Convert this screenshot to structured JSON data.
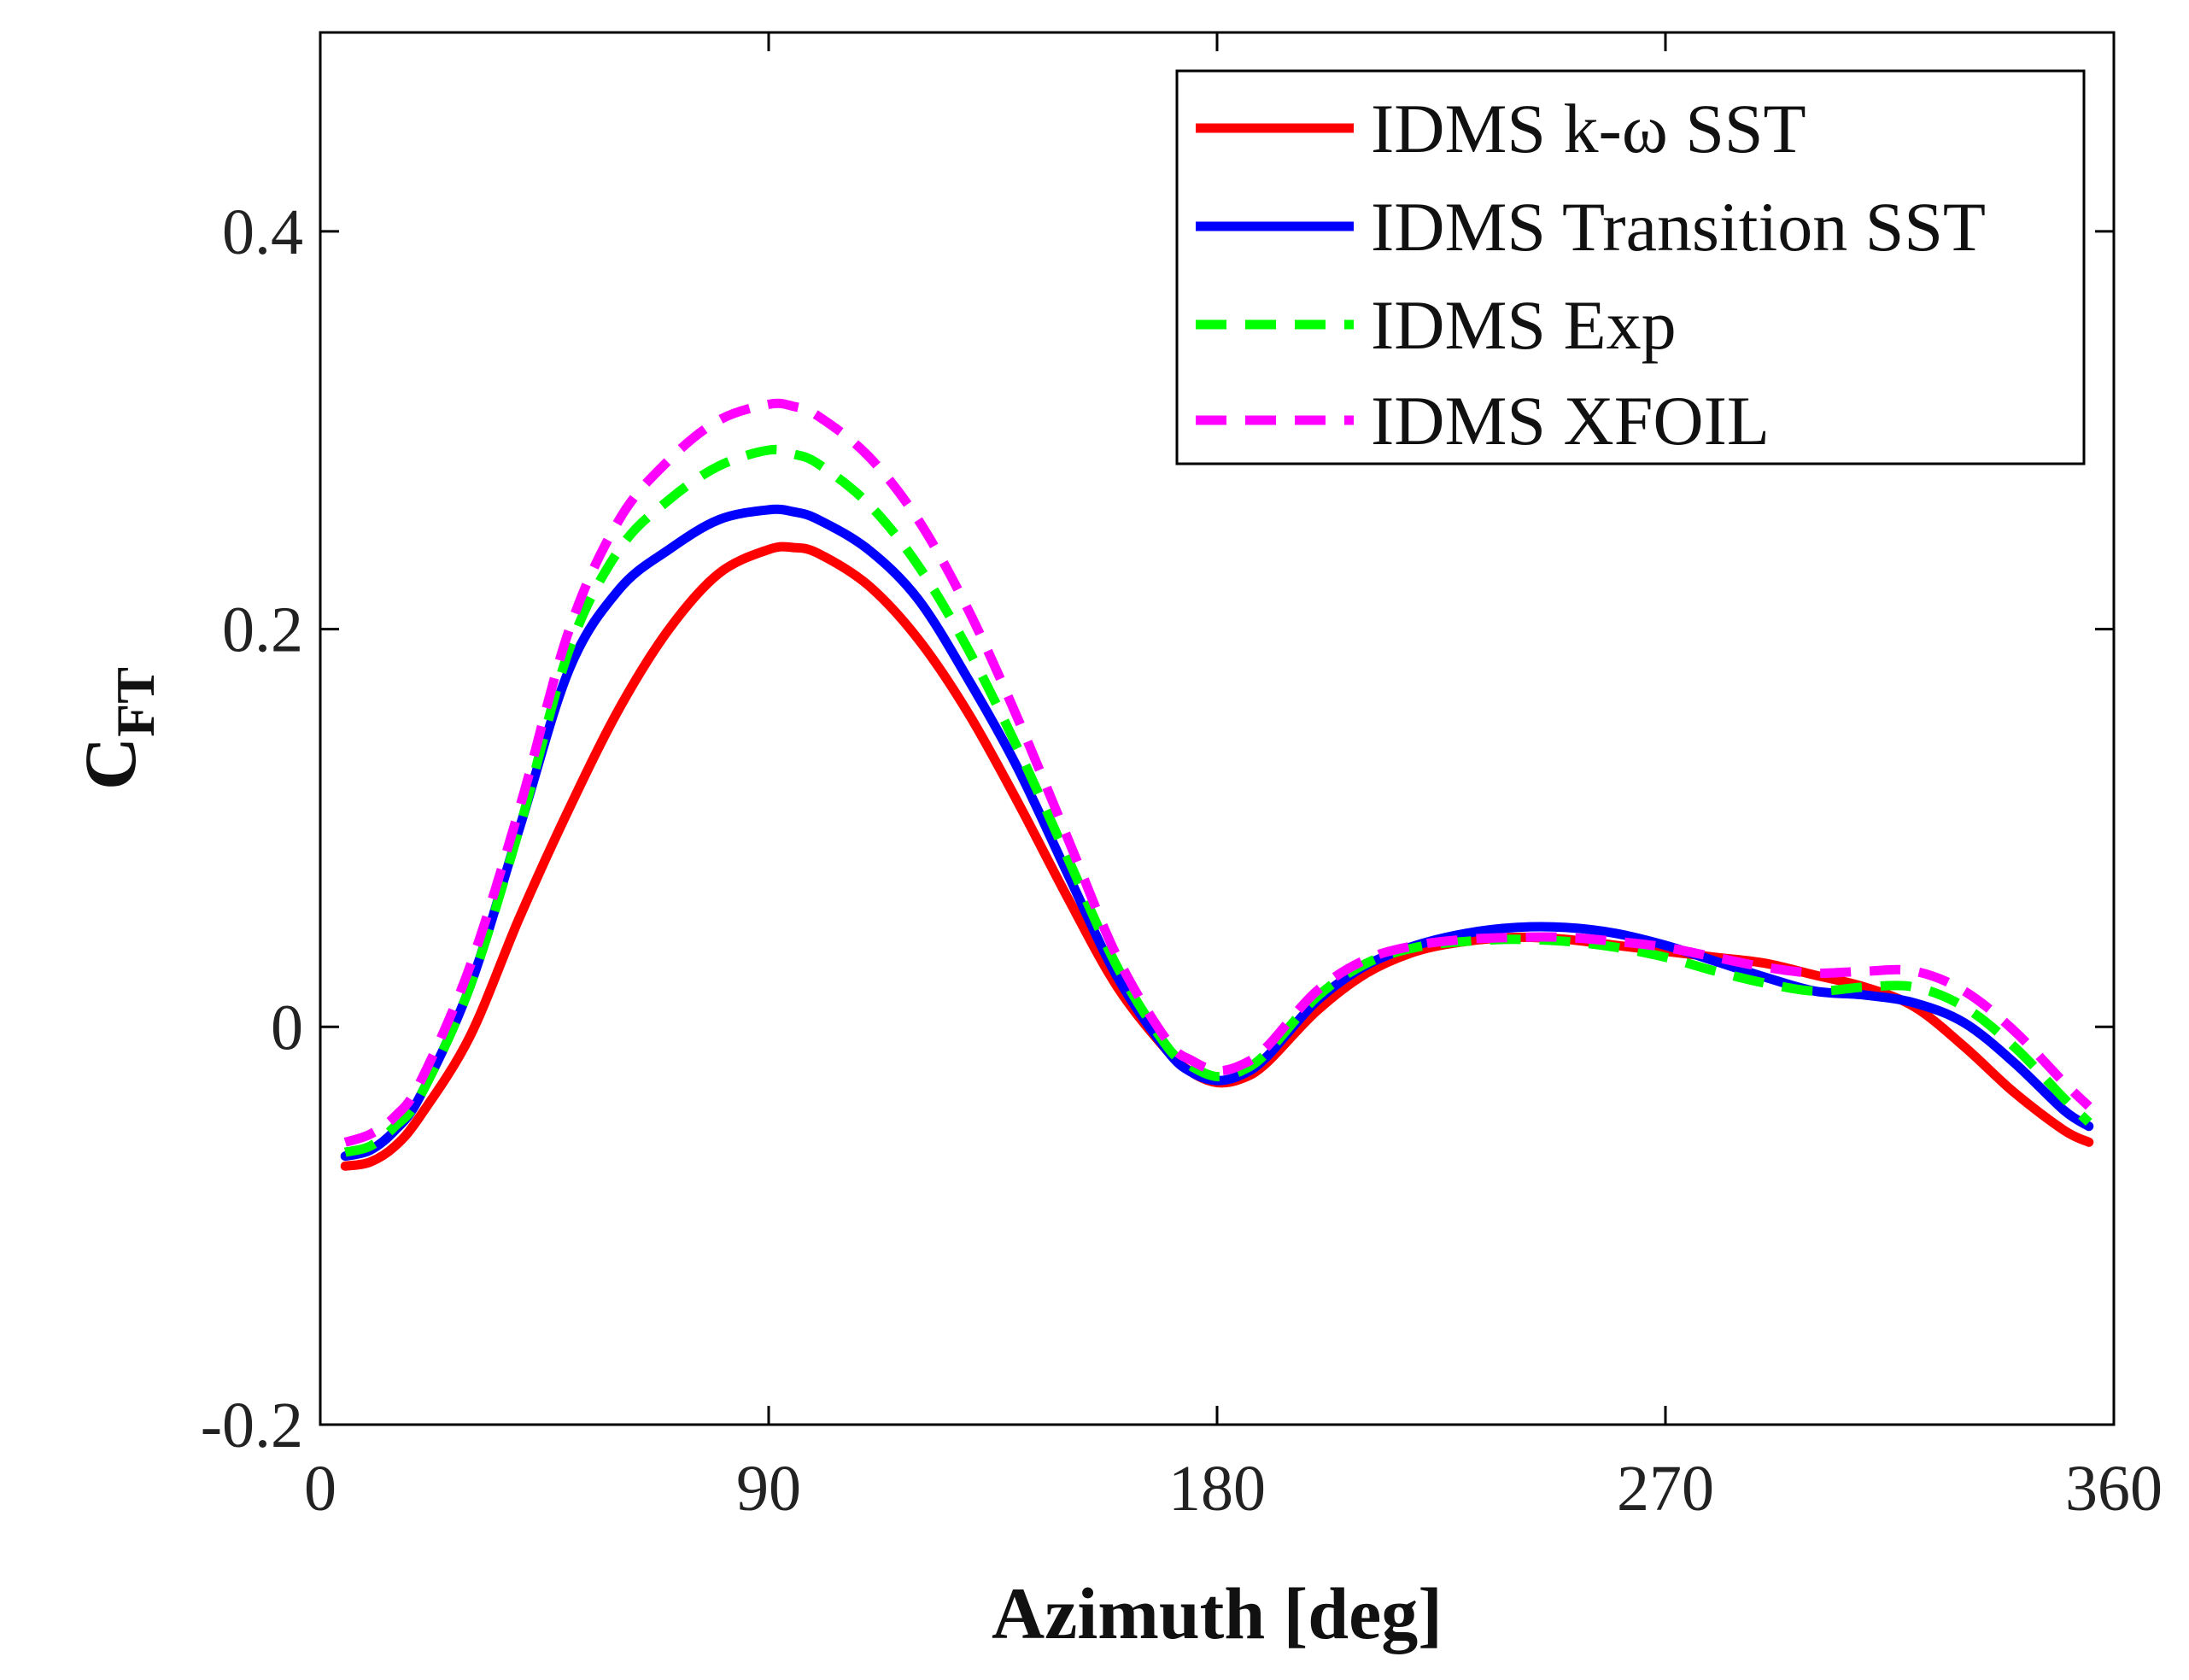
{
  "chart_data": {
    "type": "line",
    "xlabel": "Azimuth [deg]",
    "ylabel": {
      "main": "C",
      "sub": "FT"
    },
    "xlim": [
      0,
      360
    ],
    "ylim": [
      -0.2,
      0.5
    ],
    "xticks": [
      0,
      90,
      180,
      270,
      360
    ],
    "xtick_labels": [
      "0",
      "90",
      "180",
      "270",
      "360"
    ],
    "yticks": [
      -0.2,
      0,
      0.2,
      0.4
    ],
    "ytick_labels": [
      "-0.2",
      "0",
      "0.2",
      "0.4"
    ],
    "grid": false,
    "legend_position": "top-right",
    "series": [
      {
        "name": "IDMS k-ω SST",
        "color": "#ff0000",
        "dash": "solid",
        "x": [
          5,
          10,
          15,
          20,
          30,
          40,
          50,
          60,
          70,
          80,
          90,
          95,
          100,
          110,
          120,
          130,
          140,
          150,
          160,
          170,
          175,
          180,
          185,
          190,
          200,
          210,
          220,
          230,
          240,
          250,
          260,
          270,
          280,
          290,
          300,
          310,
          320,
          330,
          340,
          350,
          355
        ],
        "y": [
          -0.07,
          -0.068,
          -0.06,
          -0.045,
          -0.005,
          0.055,
          0.11,
          0.16,
          0.2,
          0.228,
          0.24,
          0.241,
          0.238,
          0.222,
          0.195,
          0.158,
          0.113,
          0.065,
          0.02,
          -0.012,
          -0.023,
          -0.028,
          -0.026,
          -0.018,
          0.008,
          0.027,
          0.038,
          0.043,
          0.045,
          0.044,
          0.041,
          0.038,
          0.035,
          0.032,
          0.026,
          0.02,
          0.01,
          -0.01,
          -0.033,
          -0.052,
          -0.058
        ]
      },
      {
        "name": "IDMS Transition SST",
        "color": "#0000ff",
        "dash": "solid",
        "x": [
          5,
          10,
          15,
          20,
          30,
          40,
          50,
          60,
          70,
          80,
          90,
          95,
          100,
          110,
          120,
          130,
          140,
          150,
          160,
          170,
          175,
          180,
          185,
          190,
          200,
          210,
          220,
          230,
          240,
          250,
          260,
          270,
          280,
          290,
          300,
          310,
          320,
          330,
          340,
          350,
          355
        ],
        "y": [
          -0.065,
          -0.062,
          -0.052,
          -0.035,
          0.02,
          0.1,
          0.18,
          0.22,
          0.24,
          0.255,
          0.26,
          0.259,
          0.255,
          0.24,
          0.215,
          0.175,
          0.13,
          0.077,
          0.025,
          -0.012,
          -0.023,
          -0.027,
          -0.024,
          -0.015,
          0.013,
          0.031,
          0.041,
          0.047,
          0.05,
          0.05,
          0.047,
          0.041,
          0.033,
          0.025,
          0.018,
          0.016,
          0.012,
          0.002,
          -0.018,
          -0.042,
          -0.05
        ]
      },
      {
        "name": "IDMS Exp",
        "color": "#00ff00",
        "dash": "dashed",
        "x": [
          5,
          10,
          15,
          20,
          30,
          40,
          50,
          60,
          70,
          80,
          90,
          95,
          100,
          110,
          120,
          130,
          140,
          150,
          160,
          170,
          175,
          180,
          185,
          190,
          200,
          210,
          220,
          230,
          240,
          250,
          260,
          270,
          280,
          290,
          300,
          310,
          320,
          330,
          340,
          350,
          355
        ],
        "y": [
          -0.063,
          -0.06,
          -0.05,
          -0.035,
          0.02,
          0.1,
          0.19,
          0.24,
          0.265,
          0.282,
          0.29,
          0.288,
          0.283,
          0.263,
          0.232,
          0.19,
          0.14,
          0.085,
          0.03,
          -0.01,
          -0.02,
          -0.025,
          -0.022,
          -0.013,
          0.015,
          0.032,
          0.04,
          0.043,
          0.044,
          0.043,
          0.04,
          0.035,
          0.028,
          0.022,
          0.018,
          0.02,
          0.02,
          0.01,
          -0.01,
          -0.036,
          -0.048
        ]
      },
      {
        "name": "IDMS XFOIL",
        "color": "#ff00ff",
        "dash": "dashed",
        "x": [
          5,
          10,
          15,
          20,
          30,
          40,
          50,
          60,
          70,
          80,
          90,
          95,
          100,
          110,
          120,
          130,
          140,
          150,
          160,
          170,
          175,
          180,
          185,
          190,
          200,
          210,
          220,
          230,
          240,
          250,
          260,
          270,
          280,
          290,
          300,
          310,
          320,
          330,
          340,
          350,
          355
        ],
        "y": [
          -0.058,
          -0.054,
          -0.045,
          -0.028,
          0.03,
          0.11,
          0.2,
          0.255,
          0.285,
          0.305,
          0.313,
          0.312,
          0.307,
          0.287,
          0.255,
          0.21,
          0.155,
          0.095,
          0.035,
          -0.007,
          -0.017,
          -0.022,
          -0.019,
          -0.01,
          0.018,
          0.034,
          0.041,
          0.044,
          0.045,
          0.045,
          0.043,
          0.04,
          0.035,
          0.03,
          0.027,
          0.028,
          0.028,
          0.018,
          -0.002,
          -0.028,
          -0.04
        ]
      }
    ]
  }
}
